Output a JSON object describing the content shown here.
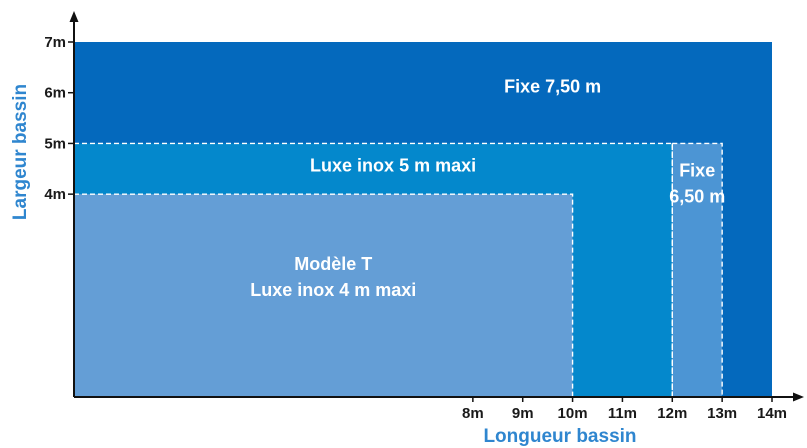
{
  "chart_data": {
    "type": "area",
    "xlabel": "Longueur bassin",
    "ylabel": "Largeur bassin",
    "xlim": [
      0,
      14
    ],
    "ylim": [
      0,
      7
    ],
    "x_ticks": [
      {
        "value": 8,
        "label": "8m"
      },
      {
        "value": 9,
        "label": "9m"
      },
      {
        "value": 10,
        "label": "10m"
      },
      {
        "value": 11,
        "label": "11m"
      },
      {
        "value": 12,
        "label": "12m"
      },
      {
        "value": 13,
        "label": "13m"
      },
      {
        "value": 14,
        "label": "14m"
      }
    ],
    "y_ticks": [
      {
        "value": 4,
        "label": "4m"
      },
      {
        "value": 5,
        "label": "5m"
      },
      {
        "value": 6,
        "label": "6m"
      },
      {
        "value": 7,
        "label": "7m"
      }
    ],
    "regions": [
      {
        "id": "fixe-750",
        "x": [
          0,
          14
        ],
        "y": [
          0,
          7
        ],
        "color": "#0469bd",
        "label_lines": [
          "Fixe 7,50 m"
        ],
        "label_at": [
          9.6,
          6.0
        ],
        "dashed": false
      },
      {
        "id": "luxe-inox-5m",
        "x": [
          0,
          12
        ],
        "y": [
          0,
          5
        ],
        "color": "#0488cc",
        "label_lines": [
          "Luxe inox 5 m maxi"
        ],
        "label_at": [
          6.4,
          4.45
        ],
        "dashed": true
      },
      {
        "id": "fixe-650",
        "x": [
          12,
          13
        ],
        "y": [
          0,
          5
        ],
        "color": "#4c95d4",
        "label_lines": [
          "Fixe",
          "6,50 m"
        ],
        "label_at": [
          12.5,
          4.35
        ],
        "dashed": true
      },
      {
        "id": "modele-t",
        "x": [
          0,
          10
        ],
        "y": [
          0,
          4
        ],
        "color": "#649ed6",
        "label_lines": [
          "Modèle T",
          "Luxe inox 4 m maxi"
        ],
        "label_at": [
          5.2,
          2.5
        ],
        "dashed": true
      }
    ],
    "colors": {
      "axis": "#111111",
      "axis_title": "#2f86cf",
      "dash": "#ffffff"
    }
  }
}
